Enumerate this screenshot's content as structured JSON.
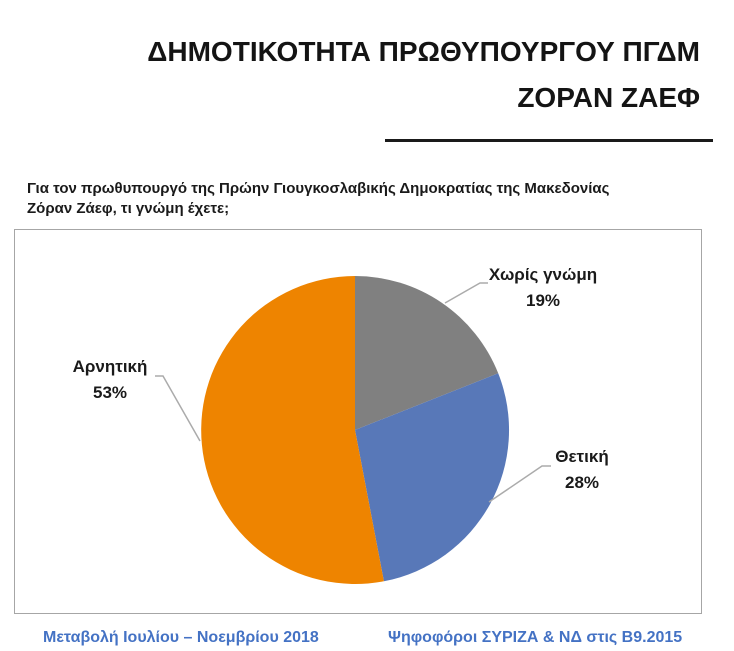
{
  "page": {
    "title_line1": "ΔΗΜΟΤΙΚΟΤΗΤΑ ΠΡΩΘΥΠΟΥΡΓΟΥ ΠΓΔΜ",
    "title_line2": "ΖΟΡΑΝ ΖΑΕΦ"
  },
  "question": {
    "line1": "Για τον πρωθυπουργό της Πρώην Γιουγκοσλαβικής Δημοκρατίας της Μακεδονίας",
    "line2": "Ζόραν Ζάεφ, τι γνώμη έχετε;"
  },
  "chart_data": {
    "type": "pie",
    "title": "ΔΗΜΟΤΙΚΟΤΗΤΑ ΠΡΩΘΥΠΟΥΡΓΟΥ ΠΓΔΜ ΖΟΡΑΝ ΖΑΕΦ",
    "question": "Για τον πρωθυπουργό της Πρώην Γιουγκοσλαβικής Δημοκρατίας της Μακεδονίας Ζόραν Ζάεφ, τι γνώμη έχετε;",
    "start_angle_deg": -90,
    "direction": "clockwise",
    "slices": [
      {
        "label": "Χωρίς γνώμη",
        "value_pct": 19,
        "display": "19%",
        "color": "#808080"
      },
      {
        "label": "Θετική",
        "value_pct": 28,
        "display": "28%",
        "color": "#5878B8"
      },
      {
        "label": "Αρνητική",
        "value_pct": 53,
        "display": "53%",
        "color": "#EE8400"
      }
    ],
    "legend": "none",
    "label_style": "outside-with-leader-lines"
  },
  "footer": {
    "link_left": "Μεταβολή Ιουλίου – Νοεμβρίου 2018",
    "link_right": "Ψηφοφόροι ΣΥΡΙΖΑ & ΝΔ στις Β9.2015",
    "link_color": "#4472C4"
  }
}
